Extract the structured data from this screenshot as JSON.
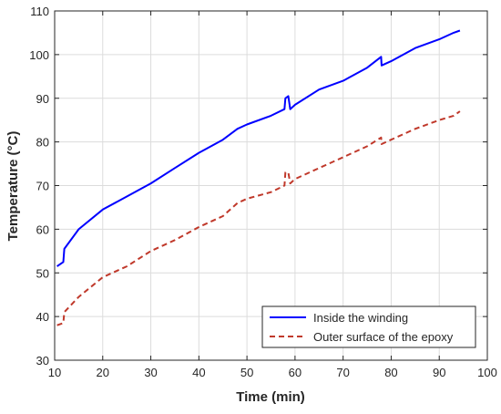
{
  "chart_data": {
    "type": "line",
    "title": "",
    "xlabel": "Time (min)",
    "ylabel": "Temperature (°C)",
    "xlim": [
      10,
      100
    ],
    "ylim": [
      30,
      110
    ],
    "x_ticks": [
      10,
      20,
      30,
      40,
      50,
      60,
      70,
      80,
      90,
      100
    ],
    "y_ticks": [
      30,
      40,
      50,
      60,
      70,
      80,
      90,
      100,
      110
    ],
    "grid": true,
    "legend_position": "bottom-right",
    "series": [
      {
        "name": "Inside the winding",
        "color": "#0000ff",
        "line_style": "solid",
        "x": [
          10.5,
          11.8,
          12.0,
          15,
          20,
          25,
          30,
          35,
          40,
          45,
          48,
          50,
          55,
          57.8,
          58.0,
          58.6,
          59.0,
          60,
          65,
          70,
          75,
          77.9,
          78.0,
          80,
          85,
          90,
          93,
          94.3
        ],
        "y": [
          51.5,
          52.5,
          55.5,
          60,
          64.5,
          67.5,
          70.5,
          74,
          77.5,
          80.5,
          83,
          84,
          86,
          87.5,
          90,
          90.5,
          87.5,
          88.5,
          92,
          94,
          97,
          99.5,
          97.5,
          98.5,
          101.5,
          103.5,
          105,
          105.5
        ]
      },
      {
        "name": "Outer surface of the epoxy",
        "color": "#c0392b",
        "line_style": "dashed",
        "x": [
          10.5,
          11.8,
          12.0,
          15,
          20,
          25,
          30,
          35,
          40,
          45,
          48,
          50,
          55,
          57.8,
          58.0,
          58.6,
          59.0,
          60,
          65,
          70,
          75,
          77.9,
          78.0,
          80,
          85,
          90,
          93,
          94.3
        ],
        "y": [
          38,
          38.5,
          41,
          44.5,
          49,
          51.5,
          55,
          57.5,
          60.5,
          63,
          66,
          67,
          68.5,
          70,
          73,
          73,
          70.5,
          71.5,
          74,
          76.5,
          79,
          81,
          79.5,
          80.5,
          83,
          85,
          86,
          87
        ]
      }
    ]
  }
}
